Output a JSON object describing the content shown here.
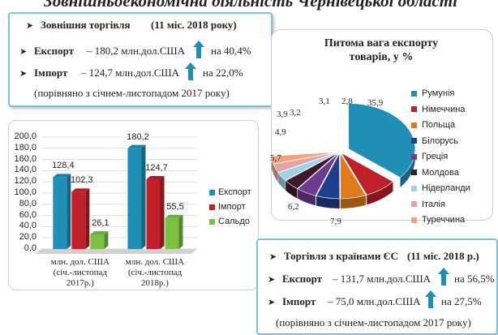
{
  "page": {
    "title": "Зовнішньоекономічна діяльність Чернівецької області"
  },
  "foreign_trade": {
    "heading": "Зовнішня торгівля",
    "period": "(11 міс. 2018 року)",
    "export_label": "Експорт",
    "export_text": "– 180,2 млн.дол.США",
    "export_change": "на 40,4%",
    "import_label": "Імпорт",
    "import_text": "– 124,7 млн.дол.США",
    "import_change": "на 22,0%",
    "comparison": "(порівняно з січнем-листопадом 2017 року)",
    "arrow_icon": "up-arrow-icon",
    "arrow_color": "#1f8fb5"
  },
  "eu_trade": {
    "heading": "Торгівля з країнами ЄС",
    "period": "(11 міс. 2018 р.)",
    "export_label": "Експорт",
    "export_text": "– 131,7 млн.дол.США",
    "export_change": "на 56,5%",
    "import_label": "Імпорт",
    "import_text": "– 75,0 млн.дол.США",
    "import_change": "на 27,5%",
    "comparison": "(порівняно з січнем-листопадом 2017 року)"
  },
  "chart_data": [
    {
      "type": "pie",
      "title_line1": "Питома вага експорту",
      "title_line2": "товарів, у %",
      "labels": [
        "Румунія",
        "Німеччина",
        "Польща",
        "Білорусь",
        "Греція",
        "Молдова",
        "Нідерланди",
        "Італія",
        "Туреччина"
      ],
      "values": [
        35.9,
        7.9,
        6.2,
        5.7,
        4.9,
        3.9,
        3.2,
        3.1,
        2.8
      ],
      "value_labels": [
        "35,9",
        "7,9",
        "6,2",
        "5,7",
        "4,9",
        "3,9",
        "3,2",
        "3,1",
        "2,8"
      ],
      "colors": [
        "#1f8fb5",
        "#c0202a",
        "#e07b1b",
        "#1e3f8c",
        "#6e3b8e",
        "#3d1a2a",
        "#9fd3e6",
        "#e3a3a6",
        "#f2a37a"
      ],
      "legend_position": "right"
    },
    {
      "type": "bar",
      "categories": [
        "млн. дол. США (січ.-листопад 2017р.)",
        "млн. дол. США (січ.-листопад 2018р.)"
      ],
      "category_lines": [
        [
          "млн. дол. США",
          "(січ.-листопад",
          "2017р.)"
        ],
        [
          "млн. дол. США",
          "(січ.-листопад",
          "2018р.)"
        ]
      ],
      "series": [
        {
          "name": "Експорт",
          "values": [
            128.4,
            180.2
          ],
          "labels": [
            "128,4",
            "180,2"
          ],
          "color": "#1f8fb5"
        },
        {
          "name": "Імпорт",
          "values": [
            102.3,
            124.7
          ],
          "labels": [
            "102,3",
            "124,7"
          ],
          "color": "#c0202a"
        },
        {
          "name": "Сальдо",
          "values": [
            26.1,
            55.5
          ],
          "labels": [
            "26,1",
            "55,5"
          ],
          "color": "#7ac143"
        }
      ],
      "ylim": [
        0,
        200
      ],
      "yticks": [
        "0,0",
        "20,0",
        "40,0",
        "60,0",
        "80,0",
        "100,0",
        "120,0",
        "140,0",
        "160,0",
        "180,0",
        "200,0"
      ],
      "legend_position": "right"
    }
  ]
}
